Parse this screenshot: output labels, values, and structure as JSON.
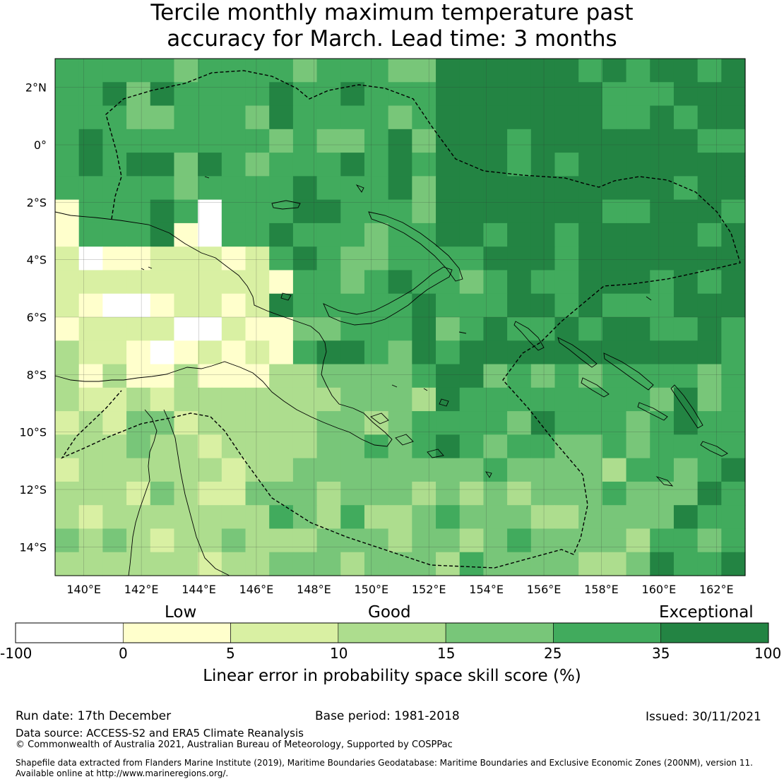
{
  "title": {
    "line1": "Tercile monthly maximum temperature past",
    "line2": "accuracy for March. Lead time: 3 months"
  },
  "map": {
    "lon_range": [
      139,
      163
    ],
    "lat_range": [
      -15,
      3
    ],
    "lon_labels": [
      "140°E",
      "142°E",
      "144°E",
      "146°E",
      "148°E",
      "150°E",
      "152°E",
      "154°E",
      "156°E",
      "158°E",
      "160°E",
      "162°E"
    ],
    "lat_labels": [
      "2°N",
      "0°",
      "2°S",
      "4°S",
      "6°S",
      "8°S",
      "10°S",
      "12°S",
      "14°S"
    ],
    "palette": [
      "#ffffff",
      "#ffffcc",
      "#d9f0a3",
      "#addd8e",
      "#78c679",
      "#41ab5d",
      "#238443"
    ]
  },
  "colorbar": {
    "categories": {
      "low": "Low",
      "good": "Good",
      "exceptional": "Exceptional"
    },
    "ticks": [
      "-100",
      "0",
      "5",
      "10",
      "15",
      "25",
      "35",
      "100"
    ],
    "colors": [
      "#ffffff",
      "#ffffcc",
      "#d9f0a3",
      "#addd8e",
      "#78c679",
      "#41ab5d",
      "#238443"
    ],
    "label": "Linear error in probability space skill score (%)"
  },
  "footer": {
    "run_date": "Run date: 17th December",
    "base_period": "Base period: 1981-2018",
    "issued": "Issued: 30/11/2021",
    "data_source": "Data source: ACCESS-S2 and ERA5 Climate Reanalysis",
    "copyright": "© Commonwealth of Australia 2021, Australian Bureau of Meteorology, Supported by COSPPac",
    "shapefile1": "Shapefile data extracted from Flanders Marine Institute (2019), Maritime Boundaries Geodatabase: Maritime Boundaries and Exclusive Economic Zones (200NM), version 11.",
    "shapefile2": "Available online at http://www.marineregions.org/."
  }
}
